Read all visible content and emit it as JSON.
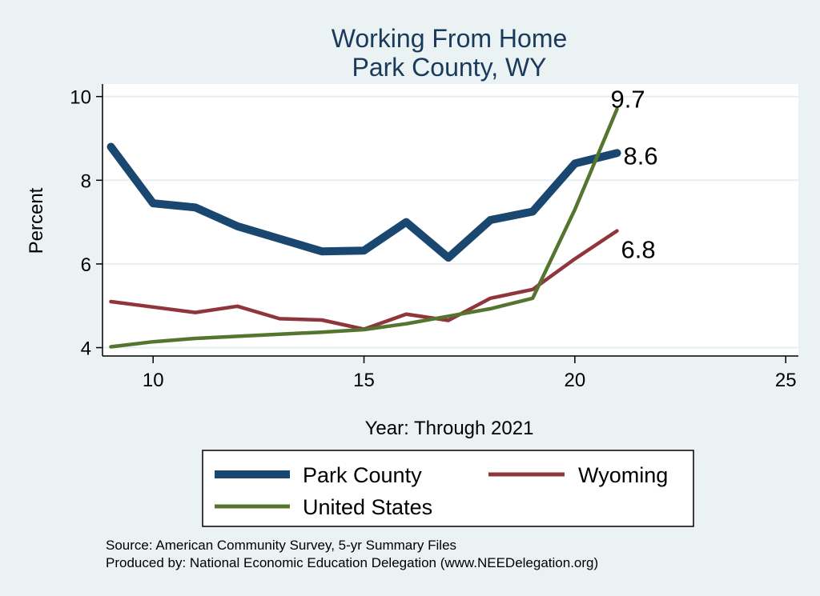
{
  "chart_data": {
    "type": "line",
    "title": "Working From Home",
    "subtitle": "Park County, WY",
    "xlabel": "Year: Through 2021",
    "ylabel": "Percent",
    "xlim": [
      8.8,
      25.3
    ],
    "ylim": [
      3.8,
      10.3
    ],
    "xticks": [
      10,
      15,
      20,
      25
    ],
    "yticks": [
      4,
      6,
      8,
      10
    ],
    "grid": "horizontal",
    "legend_position": "bottom",
    "series": [
      {
        "name": "Park County",
        "color": "#1a476f",
        "x": [
          9,
          10,
          11,
          12,
          13,
          14,
          15,
          16,
          17,
          18,
          19,
          20,
          21
        ],
        "values": [
          8.8,
          7.45,
          7.35,
          6.9,
          6.6,
          6.3,
          6.32,
          7.0,
          6.15,
          7.05,
          7.25,
          8.4,
          8.65
        ],
        "end_label": "8.6"
      },
      {
        "name": "Wyoming",
        "color": "#90353b",
        "x": [
          9,
          10,
          11,
          12,
          13,
          14,
          15,
          16,
          17,
          18,
          19,
          20,
          21
        ],
        "values": [
          5.1,
          4.97,
          4.84,
          4.99,
          4.69,
          4.66,
          4.44,
          4.8,
          4.65,
          5.18,
          5.39,
          6.12,
          6.79
        ],
        "end_label": "6.8"
      },
      {
        "name": "United States",
        "color": "#55752f",
        "x": [
          9,
          10,
          11,
          12,
          13,
          14,
          15,
          16,
          17,
          18,
          19,
          20,
          21
        ],
        "values": [
          4.02,
          4.14,
          4.22,
          4.27,
          4.32,
          4.37,
          4.43,
          4.57,
          4.75,
          4.93,
          5.18,
          7.3,
          9.7
        ],
        "end_label": "9.7"
      }
    ],
    "source_note": "Source: American Community Survey, 5-yr Summary Files",
    "produced_note": "Produced by: National Economic Education Delegation (www.NEEDelegation.org)"
  }
}
